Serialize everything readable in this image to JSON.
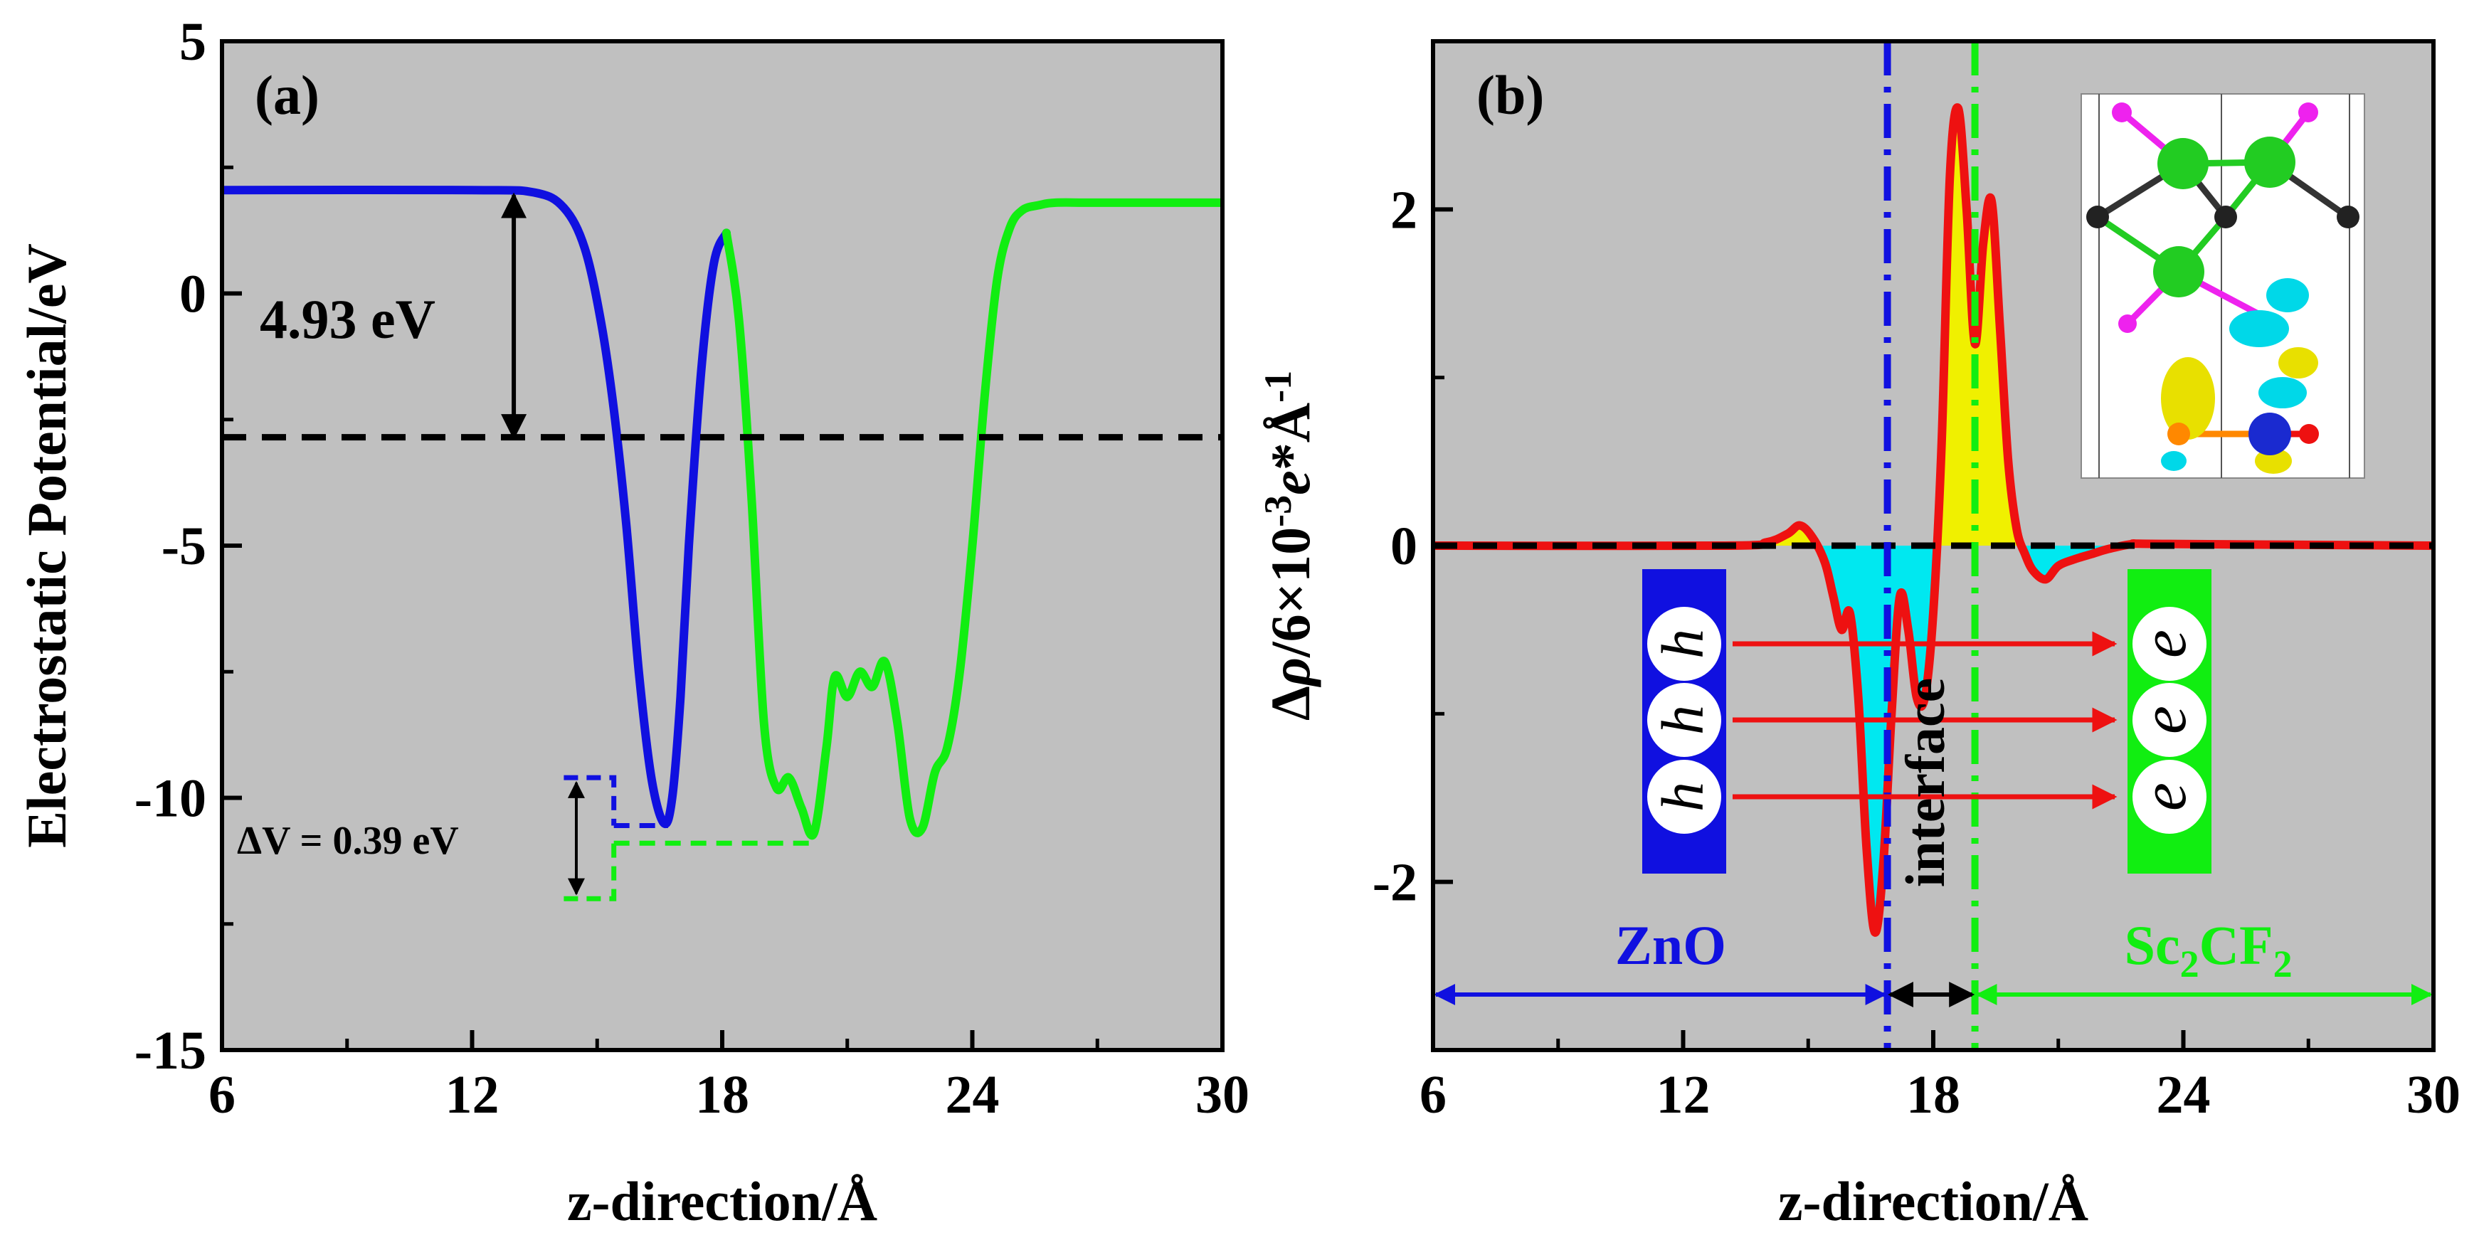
{
  "colors": {
    "plot_bg": "#c0c0c0",
    "blue": "#1010e0",
    "green": "#11ee11",
    "red": "#ee1111",
    "black": "#000000",
    "cyan": "#00e8f0",
    "yellow": "#f0f000"
  },
  "chart_data": [
    {
      "type": "line",
      "panel_label": "(a)",
      "xlabel": "z-direction/Å",
      "ylabel": "Electrostatic Potential/eV",
      "xlim": [
        6,
        30
      ],
      "ylim": [
        -15,
        5
      ],
      "xticks": [
        6,
        12,
        18,
        24,
        30
      ],
      "yticks": [
        -15,
        -10,
        -5,
        0,
        5
      ],
      "xtick_labels": [
        "6",
        "12",
        "18",
        "24",
        "30"
      ],
      "ytick_labels": [
        "-15",
        "-10",
        "-5",
        "0",
        "5"
      ],
      "series": [
        {
          "name": "ZnO",
          "color": "blue",
          "x": [
            6,
            12,
            13.5,
            14.2,
            14.7,
            15.1,
            15.4,
            15.7,
            16.0,
            16.3,
            16.6,
            16.8,
            17.0,
            17.2,
            17.5,
            17.8,
            18.1
          ],
          "y": [
            2.05,
            2.05,
            2.0,
            1.7,
            0.9,
            -0.6,
            -2.3,
            -4.6,
            -7.5,
            -9.6,
            -10.5,
            -10.0,
            -8.0,
            -5.0,
            -1.5,
            0.6,
            1.2
          ]
        },
        {
          "name": "Sc2CF2",
          "color": "green",
          "x": [
            18.1,
            18.4,
            18.7,
            19.0,
            19.3,
            19.6,
            19.9,
            20.2,
            20.5,
            20.7,
            21.0,
            21.3,
            21.6,
            21.9,
            22.2,
            22.5,
            22.8,
            23.1,
            23.4,
            23.7,
            24.0,
            24.3,
            24.6,
            24.9,
            25.2,
            25.6,
            26.0,
            27,
            30
          ],
          "y": [
            1.2,
            -0.5,
            -4.0,
            -8.5,
            -9.8,
            -9.6,
            -10.2,
            -10.7,
            -9.0,
            -7.6,
            -8.0,
            -7.5,
            -7.8,
            -7.3,
            -8.5,
            -10.4,
            -10.6,
            -9.5,
            -9.0,
            -7.5,
            -5.0,
            -2.0,
            0.3,
            1.3,
            1.65,
            1.75,
            1.8,
            1.8,
            1.8
          ]
        }
      ],
      "reference_line": {
        "y": -2.85,
        "style": "dashed",
        "color": "black"
      },
      "annotations": {
        "work_function_label": "4.93 eV",
        "work_function_x": 13.0,
        "work_function_top": 1.95,
        "work_function_bottom": -2.85,
        "delta_v_label": "ΔV = 0.39 eV",
        "blue_level": -10.55,
        "green_level": -10.9,
        "blue_level_xrange": [
          15.4,
          16.7
        ],
        "green_level_xrange": [
          15.4,
          20.3
        ],
        "blue_marker_top": -9.6,
        "green_marker_bottom": -12.0,
        "marker_x": [
          14.2,
          15.4
        ]
      }
    },
    {
      "type": "line",
      "panel_label": "(b)",
      "xlabel": "z-direction/Å",
      "ylabel": "Δρ/6×10⁻³e*Å⁻¹",
      "xlim": [
        6,
        30
      ],
      "ylim": [
        -3,
        3
      ],
      "xticks": [
        6,
        12,
        18,
        24,
        30
      ],
      "yticks": [
        -2,
        0,
        2
      ],
      "xtick_labels": [
        "6",
        "12",
        "18",
        "24",
        "30"
      ],
      "ytick_labels": [
        "-2",
        "0",
        "2"
      ],
      "series": [
        {
          "name": "charge density difference",
          "color": "red",
          "x": [
            6,
            13.0,
            14.0,
            14.5,
            14.8,
            15.1,
            15.4,
            15.6,
            15.8,
            16.0,
            16.2,
            16.4,
            16.6,
            16.8,
            17.0,
            17.2,
            17.4,
            17.6,
            17.8,
            18.0,
            18.2,
            18.4,
            18.6,
            18.8,
            19.0,
            19.2,
            19.4,
            19.6,
            19.8,
            20.0,
            20.2,
            20.4,
            20.7,
            21.0,
            21.4,
            21.8,
            22.2,
            22.8,
            23.5,
            30
          ],
          "y": [
            0,
            0,
            0.02,
            0.07,
            0.12,
            0.05,
            -0.1,
            -0.3,
            -0.5,
            -0.4,
            -0.9,
            -1.8,
            -2.3,
            -1.9,
            -1.0,
            -0.3,
            -0.5,
            -0.9,
            -0.9,
            -0.4,
            0.6,
            2.2,
            2.6,
            2.0,
            1.2,
            1.8,
            2.05,
            1.3,
            0.5,
            0.1,
            -0.05,
            -0.15,
            -0.2,
            -0.12,
            -0.08,
            -0.05,
            -0.02,
            0.01,
            0.01,
            0
          ]
        }
      ],
      "reference_line": {
        "y": 0,
        "style": "dashed",
        "color": "black"
      },
      "vertical_lines": [
        {
          "x": 16.9,
          "color": "blue",
          "style": "dashdot"
        },
        {
          "x": 19.0,
          "color": "green",
          "style": "dashdot"
        }
      ],
      "regions": [
        {
          "label": "ZnO",
          "from": 6,
          "to": 16.9,
          "color": "blue"
        },
        {
          "label": "interface",
          "from": 16.9,
          "to": 19.0,
          "color": "black"
        },
        {
          "label": "Sc",
          "label_sub1": "2",
          "label_mid": "CF",
          "label_sub2": "2",
          "from": 19.0,
          "to": 30,
          "color": "green"
        }
      ],
      "carriers": {
        "holes": [
          "h",
          "h",
          "h"
        ],
        "electrons": [
          "e",
          "e",
          "e"
        ]
      },
      "inset": "charge density isosurface of the ZnO/Sc2CF2 interface"
    }
  ]
}
